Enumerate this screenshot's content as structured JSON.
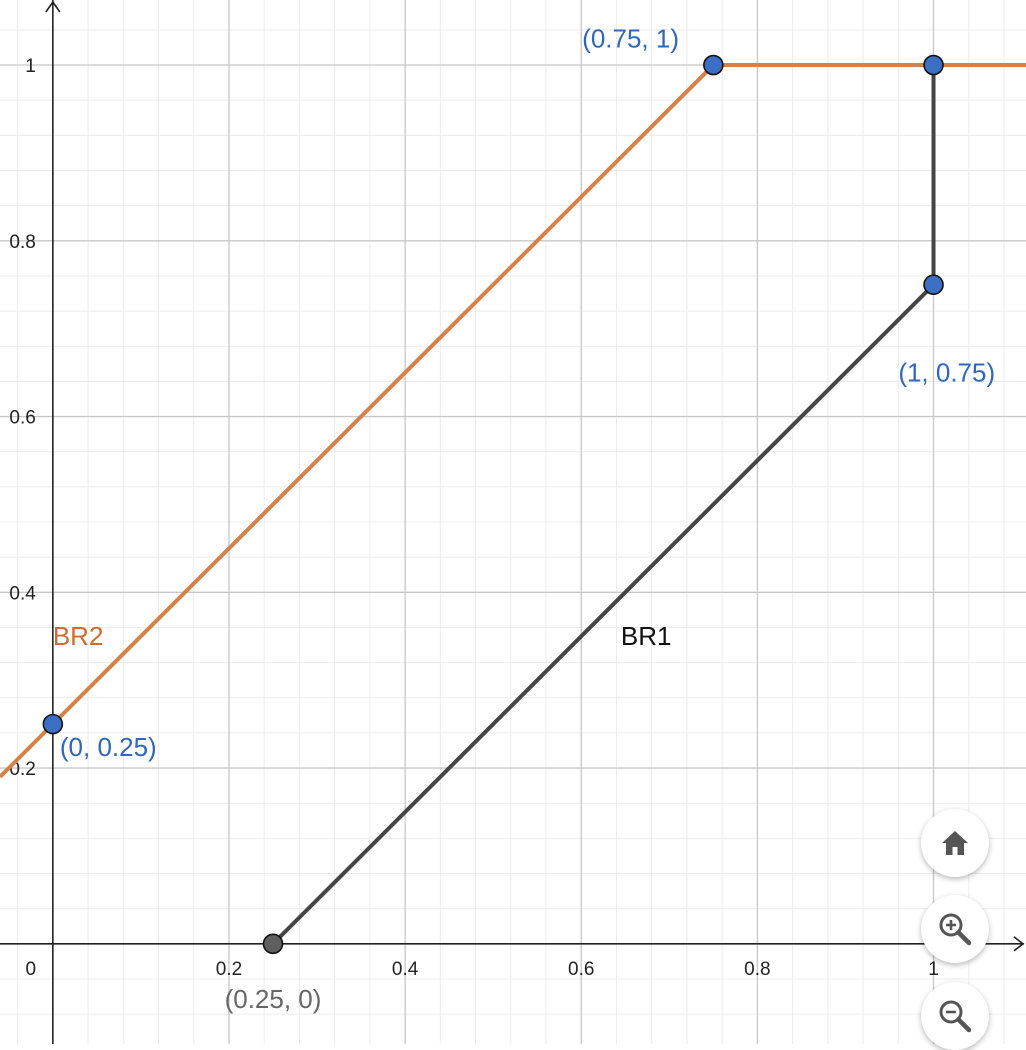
{
  "chart_data": {
    "type": "line",
    "title": "",
    "xlabel": "",
    "ylabel": "",
    "xlim": [
      -0.06,
      1.105
    ],
    "ylim": [
      -0.114,
      1.074
    ],
    "grid": true,
    "x_ticks": [
      0,
      0.2,
      0.4,
      0.6,
      0.8,
      1
    ],
    "x_tick_labels": [
      "0",
      "0.2",
      "0.4",
      "0.6",
      "0.8",
      "1"
    ],
    "y_ticks": [
      0.2,
      0.4,
      0.6,
      0.8,
      1
    ],
    "y_tick_labels": [
      "0.2",
      "0.4",
      "0.6",
      "0.8",
      "1"
    ],
    "series": [
      {
        "name": "BR2",
        "color": "#d4824a",
        "label_color": "#cf6a32",
        "label_at": [
          0.0,
          0.34
        ],
        "points": [
          [
            -0.06,
            0.19
          ],
          [
            0,
            0.25
          ],
          [
            0.75,
            1
          ],
          [
            1.105,
            1
          ]
        ]
      },
      {
        "name": "BR1",
        "color": "#454545",
        "label_color": "#111111",
        "label_at": [
          0.645,
          0.34
        ],
        "points": [
          [
            0.25,
            0
          ],
          [
            1,
            0.75
          ],
          [
            1,
            1
          ]
        ]
      }
    ],
    "points": [
      {
        "x": 0.75,
        "y": 1,
        "label": "(0.75, 1)",
        "color": "#3a6fc4",
        "label_color": "#2f66bf",
        "anchor": "end",
        "dx": -0.039,
        "dy": 0.02
      },
      {
        "x": 1,
        "y": 1,
        "label": "",
        "color": "#3a6fc4",
        "label_color": "#2f66bf",
        "anchor": "start",
        "dx": 0,
        "dy": 0
      },
      {
        "x": 1,
        "y": 0.75,
        "label": "(1, 0.75)",
        "color": "#3a6fc4",
        "label_color": "#2f66bf",
        "anchor": "middle",
        "dx": 0.015,
        "dy": -0.11
      },
      {
        "x": 0,
        "y": 0.25,
        "label": "(0, 0.25)",
        "color": "#3a6fc4",
        "label_color": "#2f66bf",
        "anchor": "start",
        "dx": 0.008,
        "dy": -0.036
      },
      {
        "x": 0.25,
        "y": 0,
        "label": "(0.25, 0)",
        "color": "#5f5f5f",
        "label_color": "#666666",
        "anchor": "middle",
        "dx": 0.0,
        "dy": -0.073
      }
    ]
  },
  "controls": {
    "home_icon": "home-icon",
    "zoom_in_icon": "zoom-in-icon",
    "zoom_out_icon": "zoom-out-icon"
  }
}
